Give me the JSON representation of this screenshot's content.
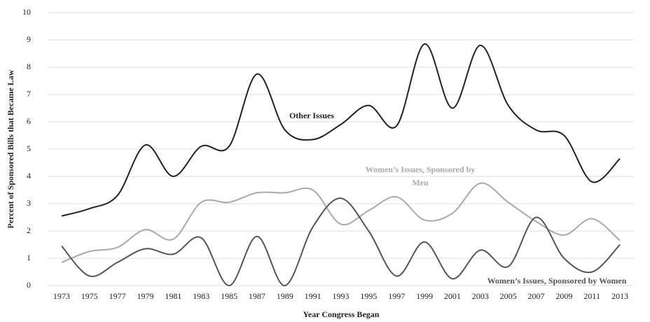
{
  "chart_data": {
    "type": "line",
    "x_label": "Year Congress Began",
    "y_label": "Percent of Sponsored Bills that Became Law",
    "categories": [
      "1973",
      "1975",
      "1977",
      "1979",
      "1981",
      "1983",
      "1985",
      "1987",
      "1989",
      "1991",
      "1993",
      "1995",
      "1997",
      "1999",
      "2001",
      "2003",
      "2005",
      "2007",
      "2009",
      "2011",
      "2013"
    ],
    "series": [
      {
        "name": "Other Issues",
        "color": "#222222",
        "values": [
          2.55,
          2.82,
          3.3,
          5.15,
          4.0,
          5.1,
          5.1,
          7.75,
          5.7,
          5.35,
          5.9,
          6.6,
          5.85,
          8.85,
          6.5,
          8.8,
          6.6,
          5.7,
          5.5,
          3.8,
          4.65
        ]
      },
      {
        "name": "Women’s Issues, Sponsored by Men",
        "color": "#aaaaaa",
        "values": [
          0.85,
          1.25,
          1.4,
          2.05,
          1.7,
          3.05,
          3.05,
          3.4,
          3.4,
          3.5,
          2.25,
          2.75,
          3.25,
          2.4,
          2.65,
          3.75,
          3.05,
          2.35,
          1.85,
          2.45,
          1.65
        ]
      },
      {
        "name": "Women’s Issues, Sponsored by Women",
        "color": "#555555",
        "values": [
          1.45,
          0.35,
          0.85,
          1.35,
          1.15,
          1.75,
          0.0,
          1.8,
          0.0,
          2.15,
          3.2,
          2.0,
          0.35,
          1.6,
          0.25,
          1.3,
          0.7,
          2.5,
          1.0,
          0.5,
          1.5
        ]
      }
    ],
    "ylim": [
      0,
      10
    ],
    "yticks": [
      0,
      1,
      2,
      3,
      4,
      5,
      6,
      7,
      8,
      9,
      10
    ],
    "grid": true
  }
}
